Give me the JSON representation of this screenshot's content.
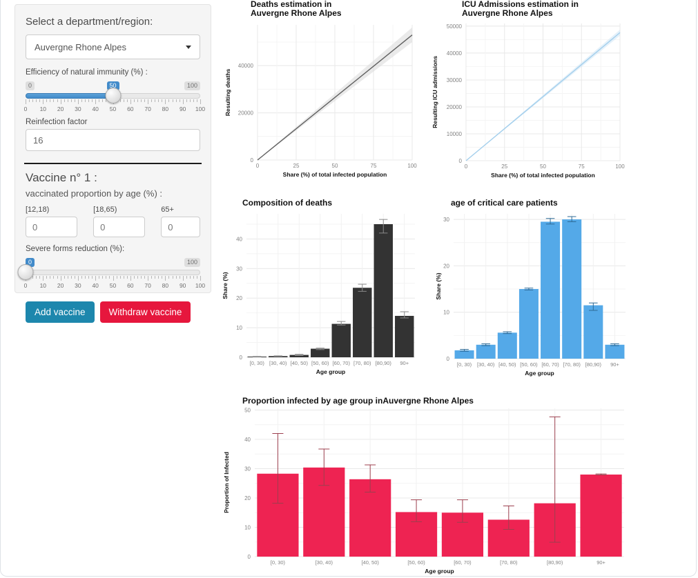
{
  "sidebar": {
    "region_label": "Select a department/region:",
    "region_value": "Auvergne Rhone Alpes",
    "immunity_slider": {
      "label": "Efficiency of natural immunity (%) :",
      "min_label": "0",
      "max_label": "100",
      "value": "50",
      "percent": 50,
      "ticks": [
        "0",
        "10",
        "20",
        "30",
        "40",
        "50",
        "60",
        "70",
        "80",
        "90",
        "100"
      ]
    },
    "reinfection": {
      "label": "Reinfection factor",
      "value": "16"
    },
    "vaccine_heading": "Vaccine n° 1 :",
    "vaccine_subheading": "vaccinated proportion by age (%) :",
    "age_inputs": [
      {
        "label": "[12,18)",
        "value": "0"
      },
      {
        "label": "[18,65)",
        "value": "0"
      },
      {
        "label": "65+",
        "value": "0"
      }
    ],
    "severe_slider": {
      "label": "Severe forms reduction (%):",
      "max_label": "100",
      "value": "0",
      "percent": 0,
      "ticks": [
        "0",
        "10",
        "20",
        "30",
        "40",
        "50",
        "60",
        "70",
        "80",
        "90",
        "100"
      ]
    },
    "add_button": "Add vaccine",
    "withdraw_button": "Withdraw vaccine"
  },
  "colors": {
    "slider_accent": "#428bca",
    "add_button": "#1d87ad",
    "withdraw_button": "#e6173d",
    "dark_bar": "#333333",
    "blue_bar": "#54a9e8",
    "red_bar": "#ee2352",
    "deaths_line": "#5f5f5f",
    "icu_line": "#a3cfec"
  },
  "chart_data": [
    {
      "id": "deaths",
      "type": "line",
      "title_lines": [
        "Deaths estimation in",
        "Auvergne Rhone Alpes"
      ],
      "xlabel": "Share (%) of total infected population",
      "ylabel": "Resulting deaths",
      "xlim": [
        0,
        100
      ],
      "xticks": [
        0,
        25,
        50,
        75,
        100
      ],
      "ylim": [
        0,
        57300
      ],
      "yticks": [
        0,
        20000,
        40000
      ],
      "grid": true,
      "line": {
        "x": [
          0,
          100
        ],
        "y": [
          0,
          53000
        ]
      },
      "ribbon": {
        "x": [
          0,
          100
        ],
        "lower": [
          0,
          50000
        ],
        "upper": [
          0,
          56200
        ]
      },
      "line_color": "#5f5f5f",
      "ribbon_color": "#d9d9d9"
    },
    {
      "id": "icu",
      "type": "line",
      "title_lines": [
        "ICU Admissions estimation in",
        "Auvergne Rhone Alpes"
      ],
      "xlabel": "Share (%) of total infected population",
      "ylabel": "Resulting ICU admissions",
      "xlim": [
        0,
        100
      ],
      "xticks": [
        0,
        25,
        50,
        75,
        100
      ],
      "ylim": [
        0,
        51000
      ],
      "yticks": [
        0,
        10000,
        20000,
        30000,
        40000,
        50000
      ],
      "grid": true,
      "line": {
        "x": [
          0,
          100
        ],
        "y": [
          0,
          47600
        ]
      },
      "ribbon": {
        "x": [
          0,
          100
        ],
        "lower": [
          0,
          46500
        ],
        "upper": [
          0,
          48700
        ]
      },
      "line_color": "#a3cfec",
      "ribbon_color": "#cfe6f5"
    },
    {
      "id": "deaths_composition",
      "type": "bar",
      "title_lines": [
        "Composition of deaths"
      ],
      "xlabel": "Age group",
      "ylabel": "Share (%)",
      "categories": [
        "[0, 30)",
        "[30, 40)",
        "[40, 50)",
        "[50, 60)",
        "[60, 70)",
        "[70, 80)",
        "[80,90)",
        "90+"
      ],
      "values": [
        0.2,
        0.4,
        0.8,
        2.9,
        11.3,
        23.5,
        45.0,
        14.0
      ],
      "err_low": [
        0.1,
        0.3,
        0.6,
        2.6,
        10.9,
        22.3,
        42.0,
        13.3
      ],
      "err_high": [
        0.3,
        0.5,
        1.0,
        3.1,
        12.1,
        24.7,
        46.6,
        15.4
      ],
      "ylim": [
        0,
        48.5
      ],
      "yticks": [
        0,
        10,
        20,
        30,
        40
      ],
      "grid": true,
      "bar_color": "#333333",
      "err_color": "#8a8a8a"
    },
    {
      "id": "critical_care_age",
      "type": "bar",
      "title_lines": [
        "age of critical care patients"
      ],
      "xlabel": "Age group",
      "ylabel": "Share (%)",
      "categories": [
        "[0, 30)",
        "[30, 40)",
        "[40, 50)",
        "[50, 60)",
        "[60, 70)",
        "[70, 80)",
        "[80,90)",
        "90+"
      ],
      "values": [
        1.8,
        3.0,
        5.6,
        15.0,
        29.5,
        30.0,
        11.5,
        3.0
      ],
      "err_low": [
        1.6,
        2.8,
        5.4,
        14.8,
        29.0,
        29.5,
        10.4,
        2.8
      ],
      "err_high": [
        2.0,
        3.2,
        5.8,
        15.2,
        30.2,
        30.6,
        12.0,
        3.2
      ],
      "ylim": [
        0,
        31.2
      ],
      "yticks": [
        0,
        10,
        20,
        30
      ],
      "grid": true,
      "bar_color": "#54a9e8",
      "err_color": "#2e6a96"
    },
    {
      "id": "proportion_infected",
      "type": "bar",
      "title_lines": [
        "Proportion infected by age group inAuvergne Rhone Alpes"
      ],
      "xlabel": "Age group",
      "ylabel": "Proportion of Infected",
      "categories": [
        "[0, 30)",
        "[30, 40)",
        "[40, 50)",
        "[50, 60)",
        "[60, 70)",
        "[70, 80)",
        "[80,90)",
        "90+"
      ],
      "values": [
        28.3,
        30.4,
        26.4,
        15.2,
        15.0,
        12.6,
        18.2,
        28.0
      ],
      "err_low": [
        18.2,
        24.3,
        22.0,
        11.9,
        11.7,
        9.3,
        4.9,
        27.9
      ],
      "err_high": [
        42.0,
        36.7,
        31.3,
        19.4,
        19.4,
        17.3,
        47.7,
        28.2
      ],
      "ylim": [
        0,
        50.6
      ],
      "yticks": [
        0,
        10,
        20,
        30,
        40,
        50
      ],
      "grid": true,
      "bar_color": "#ee2352",
      "err_color": "#9c3f4e"
    }
  ]
}
